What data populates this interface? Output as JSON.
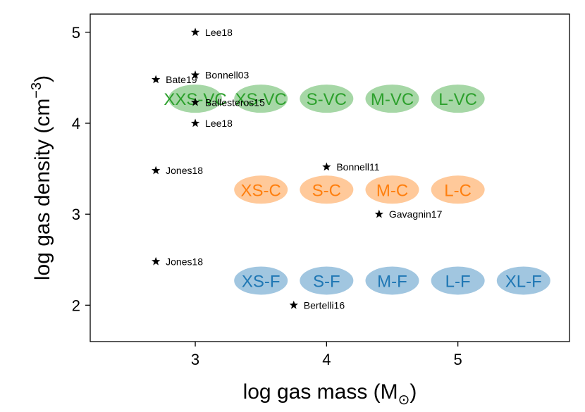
{
  "chart_data": {
    "type": "scatter",
    "title": "",
    "xlabel": "log gas mass (M",
    "xlabel_sub": "⊙",
    "xlabel_close": ")",
    "ylabel": "log gas density (cm",
    "ylabel_sup": "−3",
    "ylabel_close": ")",
    "xlim": [
      2.2,
      5.85
    ],
    "ylim": [
      1.6,
      5.2
    ],
    "xticks": [
      3,
      4,
      5
    ],
    "yticks": [
      2,
      3,
      4,
      5
    ],
    "xtick_labels": [
      "3",
      "4",
      "5"
    ],
    "ytick_labels": [
      "2",
      "3",
      "4",
      "5"
    ],
    "regions": [
      {
        "name": "XXS-VC",
        "x": 3.0,
        "y": 4.27,
        "color": "#2ca02c",
        "group": "VC"
      },
      {
        "name": "XS-VC",
        "x": 3.5,
        "y": 4.27,
        "color": "#2ca02c",
        "group": "VC"
      },
      {
        "name": "S-VC",
        "x": 4.0,
        "y": 4.27,
        "color": "#2ca02c",
        "group": "VC"
      },
      {
        "name": "M-VC",
        "x": 4.5,
        "y": 4.27,
        "color": "#2ca02c",
        "group": "VC"
      },
      {
        "name": "L-VC",
        "x": 5.0,
        "y": 4.27,
        "color": "#2ca02c",
        "group": "VC"
      },
      {
        "name": "XS-C",
        "x": 3.5,
        "y": 3.27,
        "color": "#ff7f0e",
        "group": "C"
      },
      {
        "name": "S-C",
        "x": 4.0,
        "y": 3.27,
        "color": "#ff7f0e",
        "group": "C"
      },
      {
        "name": "M-C",
        "x": 4.5,
        "y": 3.27,
        "color": "#ff7f0e",
        "group": "C"
      },
      {
        "name": "L-C",
        "x": 5.0,
        "y": 3.27,
        "color": "#ff7f0e",
        "group": "C"
      },
      {
        "name": "XS-F",
        "x": 3.5,
        "y": 2.27,
        "color": "#1f77b4",
        "group": "F"
      },
      {
        "name": "S-F",
        "x": 4.0,
        "y": 2.27,
        "color": "#1f77b4",
        "group": "F"
      },
      {
        "name": "M-F",
        "x": 4.5,
        "y": 2.27,
        "color": "#1f77b4",
        "group": "F"
      },
      {
        "name": "L-F",
        "x": 5.0,
        "y": 2.27,
        "color": "#1f77b4",
        "group": "F"
      },
      {
        "name": "XL-F",
        "x": 5.5,
        "y": 2.27,
        "color": "#1f77b4",
        "group": "F"
      }
    ],
    "points": [
      {
        "label": "Lee18",
        "x": 3.0,
        "y": 5.0
      },
      {
        "label": "Bonnell03",
        "x": 3.0,
        "y": 4.53
      },
      {
        "label": "Bate19",
        "x": 2.7,
        "y": 4.48
      },
      {
        "label": "Ballesteros15",
        "x": 3.0,
        "y": 4.23
      },
      {
        "label": "Lee18",
        "x": 3.0,
        "y": 4.0
      },
      {
        "label": "Jones18",
        "x": 2.7,
        "y": 3.48
      },
      {
        "label": "Bonnell11",
        "x": 4.0,
        "y": 3.52
      },
      {
        "label": "Gavagnin17",
        "x": 4.4,
        "y": 3.0
      },
      {
        "label": "Jones18",
        "x": 2.7,
        "y": 2.48
      },
      {
        "label": "Bertelli16",
        "x": 3.75,
        "y": 2.0
      }
    ]
  }
}
